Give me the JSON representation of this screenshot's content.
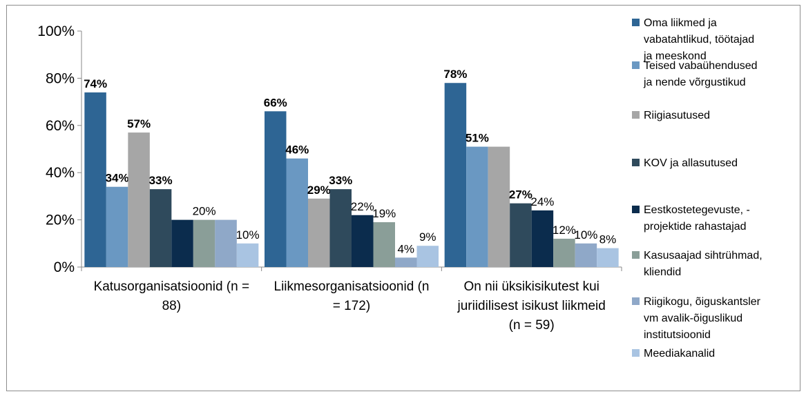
{
  "chart_data": {
    "type": "bar",
    "title": "",
    "xlabel": "",
    "ylabel": "",
    "ylim": [
      0,
      100
    ],
    "y_ticks": [
      "0%",
      "20%",
      "40%",
      "60%",
      "80%",
      "100%"
    ],
    "grid": false,
    "legend_position": "right",
    "categories": [
      [
        "Katusorganisatsioonid (n =",
        "88)"
      ],
      [
        "Liikmesorganisatsioonid (n",
        "= 172)"
      ],
      [
        "On nii üksikisikutest kui",
        "juriidilisest isikust liikmeid",
        "(n = 59)"
      ]
    ],
    "series": [
      {
        "name": [
          "Oma liikmed ja",
          "vabatahtlikud, töötajad",
          "ja meeskond"
        ],
        "color": "#2e6594",
        "values": [
          74,
          66,
          78
        ],
        "labels": [
          "74%",
          "66%",
          "78%"
        ],
        "bold": [
          true,
          true,
          true
        ]
      },
      {
        "name": [
          "Teised vabaühendused",
          "ja nende võrgustikud"
        ],
        "color": "#6a98c2",
        "values": [
          34,
          46,
          51
        ],
        "labels": [
          "34%",
          "46%",
          "51%"
        ],
        "bold": [
          true,
          true,
          true
        ]
      },
      {
        "name": [
          "Riigiasutused"
        ],
        "color": "#a6a6a6",
        "values": [
          57,
          29,
          51
        ],
        "labels": [
          "57%",
          "29%",
          ""
        ],
        "bold": [
          true,
          true,
          true
        ]
      },
      {
        "name": [
          "KOV ja allasutused"
        ],
        "color": "#2f4a5c",
        "values": [
          33,
          33,
          27
        ],
        "labels": [
          "33%",
          "33%",
          "27%"
        ],
        "bold": [
          true,
          true,
          true
        ]
      },
      {
        "name": [
          "Eestkostetegevuste, -",
          "projektide rahastajad"
        ],
        "color": "#0b2c4d",
        "values": [
          20,
          22,
          24
        ],
        "labels": [
          "",
          "22%",
          "24%"
        ],
        "bold": [
          false,
          false,
          false
        ]
      },
      {
        "name": [
          "Kasusaajad sihtrühmad,",
          "kliendid"
        ],
        "color": "#8a9e98",
        "values": [
          20,
          19,
          12
        ],
        "labels": [
          "20%",
          "19%",
          "12%"
        ],
        "bold": [
          false,
          false,
          false
        ]
      },
      {
        "name": [
          "Riigikogu, õiguskantsler",
          "vm avalik-õiguslikud",
          "institutsioonid"
        ],
        "color": "#8fa8c8",
        "values": [
          20,
          4,
          10
        ],
        "labels": [
          "",
          "4%",
          "10%"
        ],
        "bold": [
          false,
          false,
          false
        ]
      },
      {
        "name": [
          "Meediakanalid"
        ],
        "color": "#a9c4e2",
        "values": [
          10,
          9,
          8
        ],
        "labels": [
          "10%",
          "9%",
          "8%"
        ],
        "bold": [
          false,
          false,
          false
        ]
      }
    ]
  }
}
